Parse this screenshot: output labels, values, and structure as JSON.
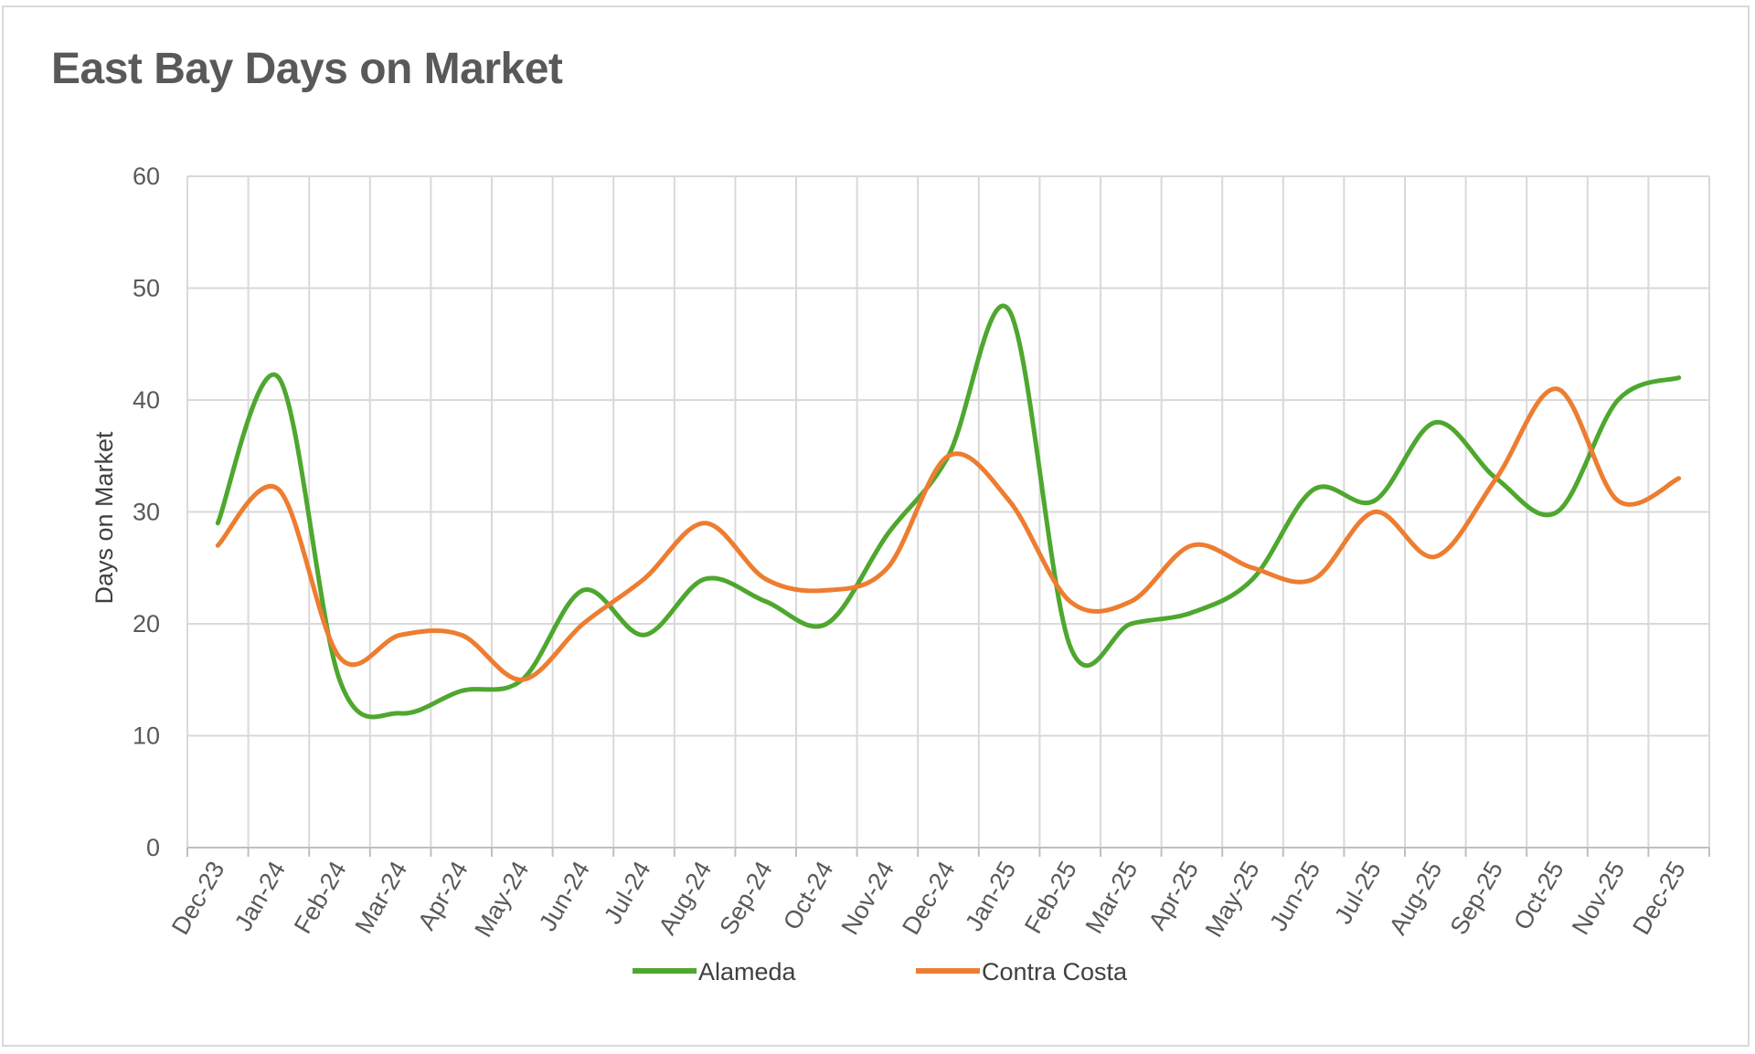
{
  "chart_data": {
    "type": "line",
    "title": "East Bay Days on Market",
    "xlabel": "",
    "ylabel": "Days on Market",
    "ylim": [
      0,
      60
    ],
    "yticks": [
      0,
      10,
      20,
      30,
      40,
      50,
      60
    ],
    "categories": [
      "Dec-23",
      "Jan-24",
      "Feb-24",
      "Mar-24",
      "Apr-24",
      "May-24",
      "Jun-24",
      "Jul-24",
      "Aug-24",
      "Sep-24",
      "Oct-24",
      "Nov-24",
      "Dec-24",
      "Jan-25",
      "Feb-25",
      "Mar-25",
      "Apr-25",
      "May-25",
      "Jun-25",
      "Jul-25",
      "Aug-25",
      "Sep-25",
      "Oct-25",
      "Nov-25",
      "Dec-25"
    ],
    "grid": true,
    "legend_position": "bottom",
    "smooth": true,
    "series": [
      {
        "name": "Alameda",
        "color": "#4ea72e",
        "values": [
          29,
          42,
          15,
          12,
          14,
          15,
          23,
          19,
          24,
          22,
          20,
          28,
          35,
          48,
          18,
          20,
          21,
          24,
          32,
          31,
          38,
          33,
          30,
          40,
          42
        ]
      },
      {
        "name": "Contra Costa",
        "color": "#ed7d31",
        "values": [
          27,
          32,
          17,
          19,
          19,
          15,
          20,
          24,
          29,
          24,
          23,
          25,
          35,
          31,
          22,
          22,
          27,
          25,
          24,
          30,
          26,
          33,
          41,
          31,
          33
        ]
      }
    ]
  }
}
